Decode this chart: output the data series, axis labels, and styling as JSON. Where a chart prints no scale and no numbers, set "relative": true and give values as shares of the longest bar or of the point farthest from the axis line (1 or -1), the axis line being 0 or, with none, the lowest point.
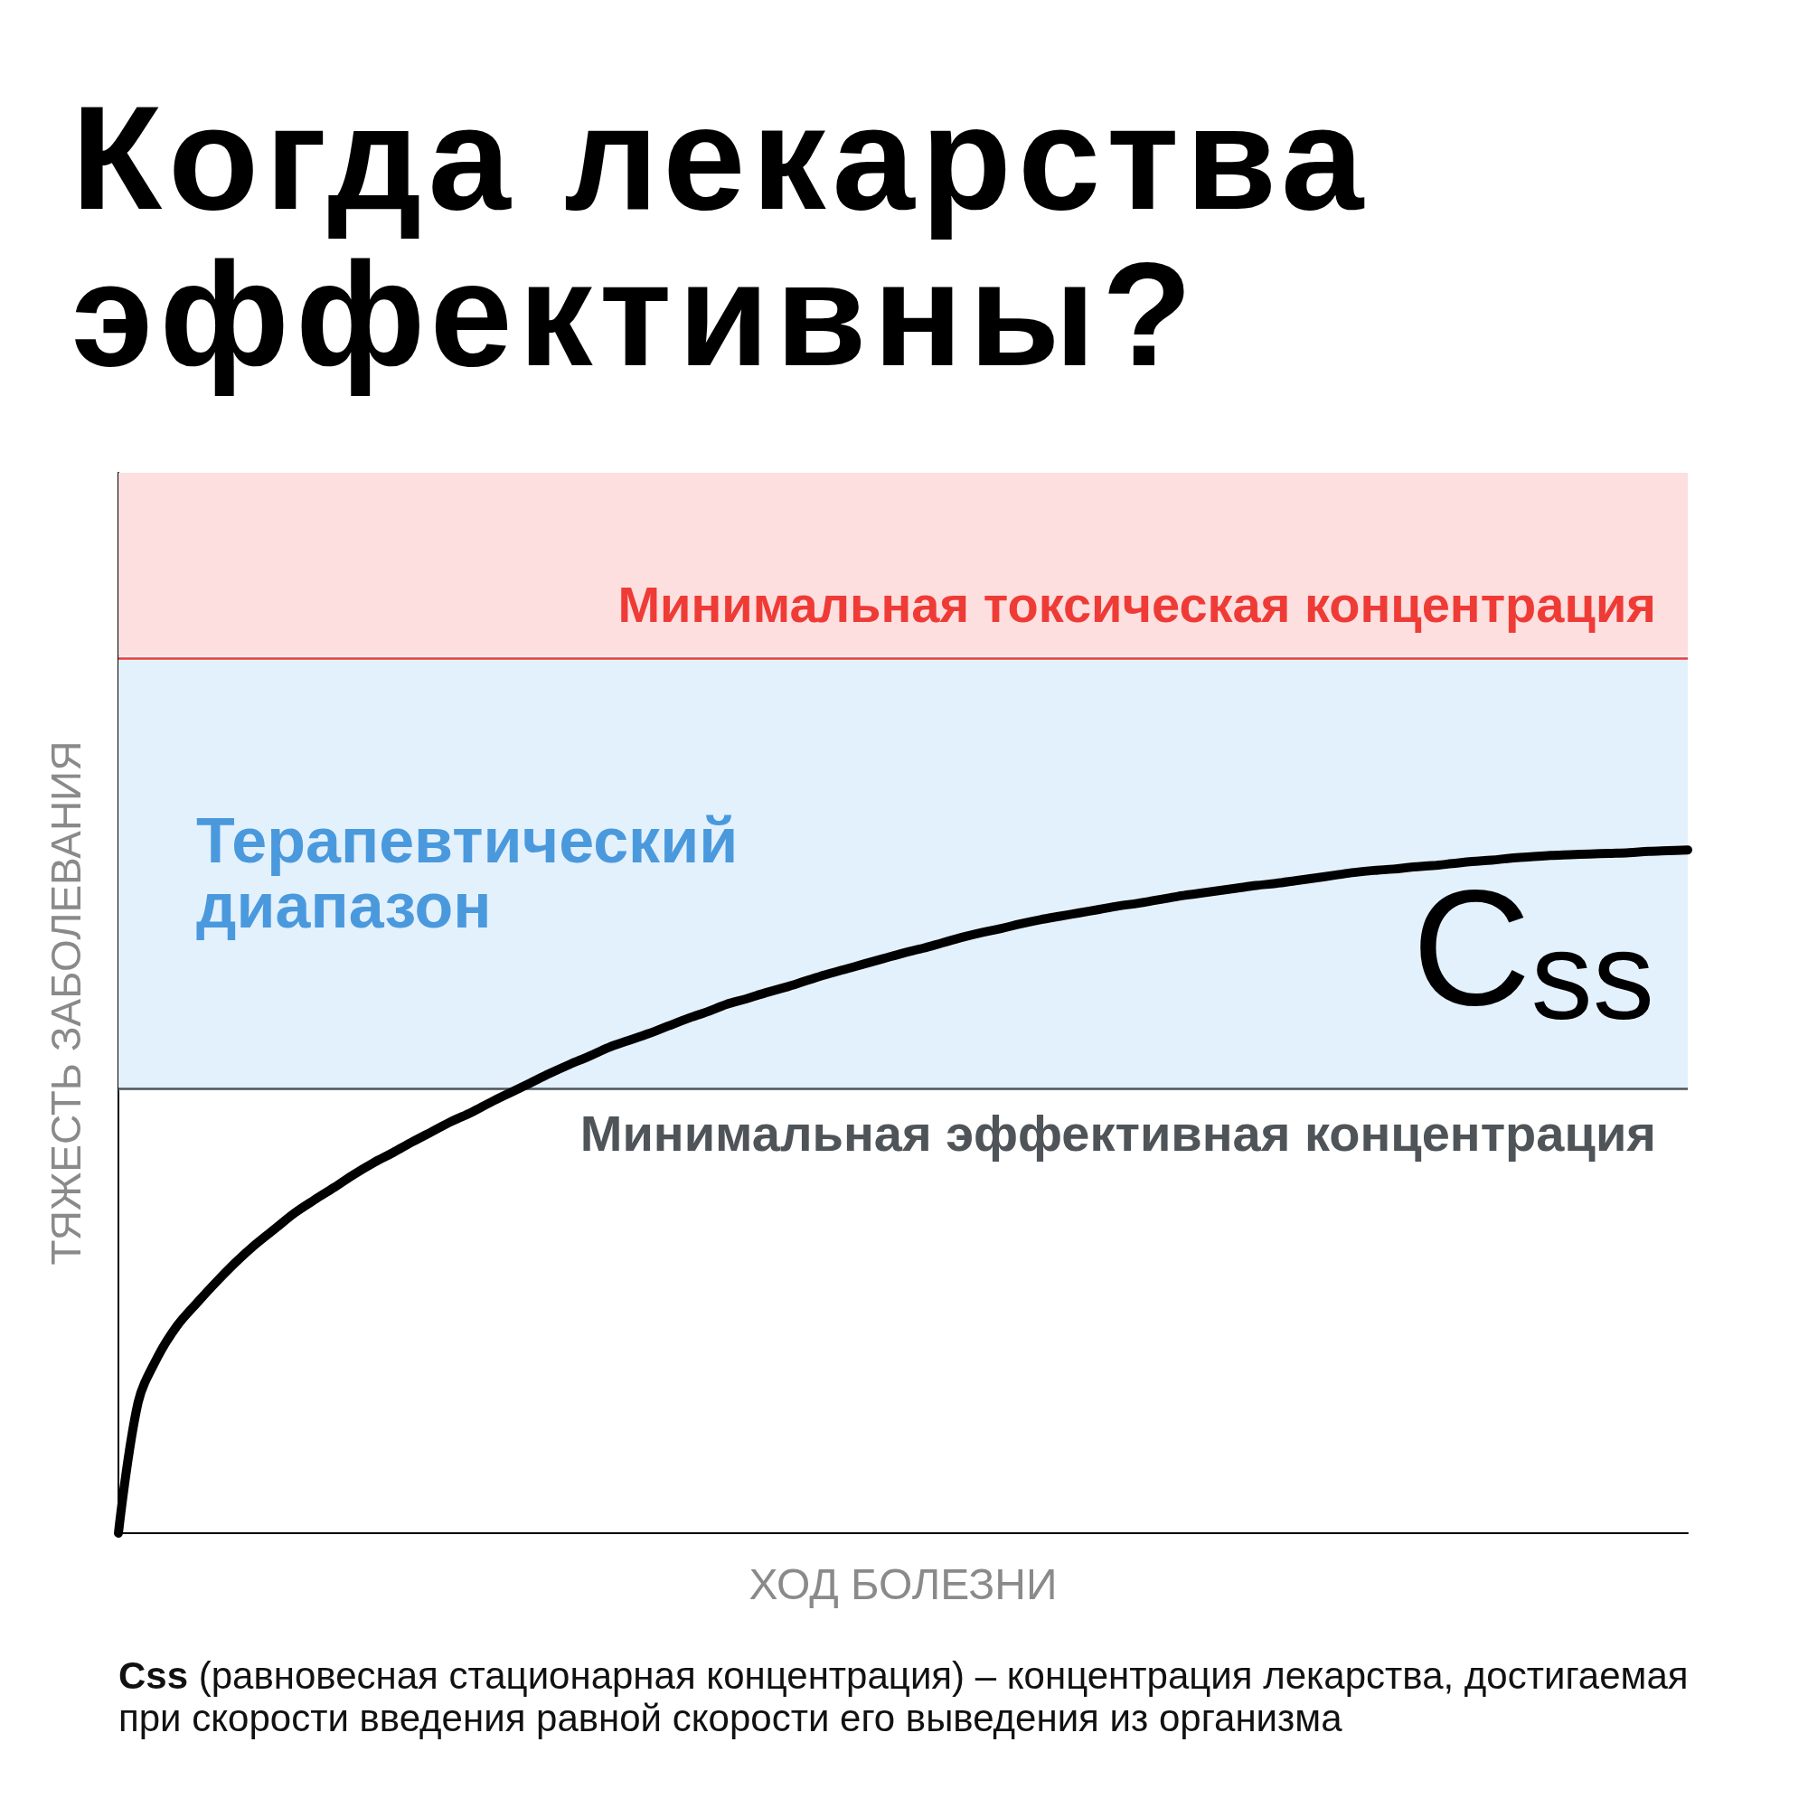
{
  "chart_data": {
    "type": "line",
    "title": "Когда лекарства эффективны?",
    "xlabel": "ХОД БОЛЕЗНИ",
    "ylabel": "ТЯЖЕСТЬ ЗАБОЛЕВАНИЯ",
    "relative": true,
    "categories": [
      null,
      null,
      null,
      null,
      null,
      null,
      null,
      null,
      null,
      null,
      null,
      null,
      null,
      null,
      null,
      null,
      null,
      null,
      null,
      null,
      null,
      null,
      null,
      null,
      null,
      null,
      null,
      null,
      null,
      null,
      null,
      null,
      null,
      null,
      null,
      null,
      null,
      null,
      null,
      null,
      null,
      null,
      null,
      null,
      null,
      null,
      null,
      null,
      null,
      null,
      null,
      null,
      null,
      null,
      null,
      null,
      null,
      null,
      null,
      null,
      null,
      null,
      null,
      null,
      null,
      null,
      null,
      null,
      null,
      null,
      null,
      null,
      null,
      null,
      null,
      null,
      null,
      null,
      null,
      null,
      null
    ],
    "series": [
      {
        "name": "C$_{ss}$",
        "color": "#000000",
        "values": [
          0,
          0.191,
          0.258,
          0.304,
          0.337,
          0.368,
          0.397,
          0.423,
          0.446,
          0.469,
          0.488,
          0.506,
          0.525,
          0.542,
          0.557,
          0.573,
          0.588,
          0.603,
          0.616,
          0.631,
          0.645,
          0.659,
          0.673,
          0.686,
          0.698,
          0.711,
          0.721,
          0.731,
          0.742,
          0.753,
          0.763,
          0.774,
          0.782,
          0.791,
          0.799,
          0.808,
          0.817,
          0.825,
          0.833,
          0.841,
          0.849,
          0.856,
          0.864,
          0.872,
          0.879,
          0.885,
          0.892,
          0.898,
          0.903,
          0.908,
          0.913,
          0.918,
          0.922,
          0.927,
          0.932,
          0.936,
          0.94,
          0.944,
          0.948,
          0.951,
          0.955,
          0.959,
          0.963,
          0.967,
          0.97,
          0.972,
          0.975,
          0.977,
          0.98,
          0.983,
          0.985,
          0.988,
          0.99,
          0.992,
          0.993,
          0.994,
          0.995,
          0.996,
          0.998,
          0.999,
          1
        ]
      }
    ],
    "bands": [
      {
        "axis": "y",
        "from": 0.648,
        "to": 1.284,
        "label": "Терапевтический диапазон",
        "color": "#e3f1fd"
      },
      {
        "axis": "y",
        "from": 1.284,
        "to": 1.552,
        "color": "#fddfdf"
      }
    ],
    "ref_lines": [
      {
        "axis": "y",
        "value": 1.284,
        "label": "Минимальная токсическая концентрация",
        "color": "#ef3b36"
      },
      {
        "axis": "y",
        "value": 0.648,
        "label": "Минимальная эффективная концентрация",
        "color": "#4f5459"
      }
    ],
    "annotations": [
      "Css (равновесная стационарная концентрация) – концентрация лекарства, достигаемая при скорости введения равной скорости его выведения из организма"
    ],
    "grid": false,
    "marker": "none"
  }
}
